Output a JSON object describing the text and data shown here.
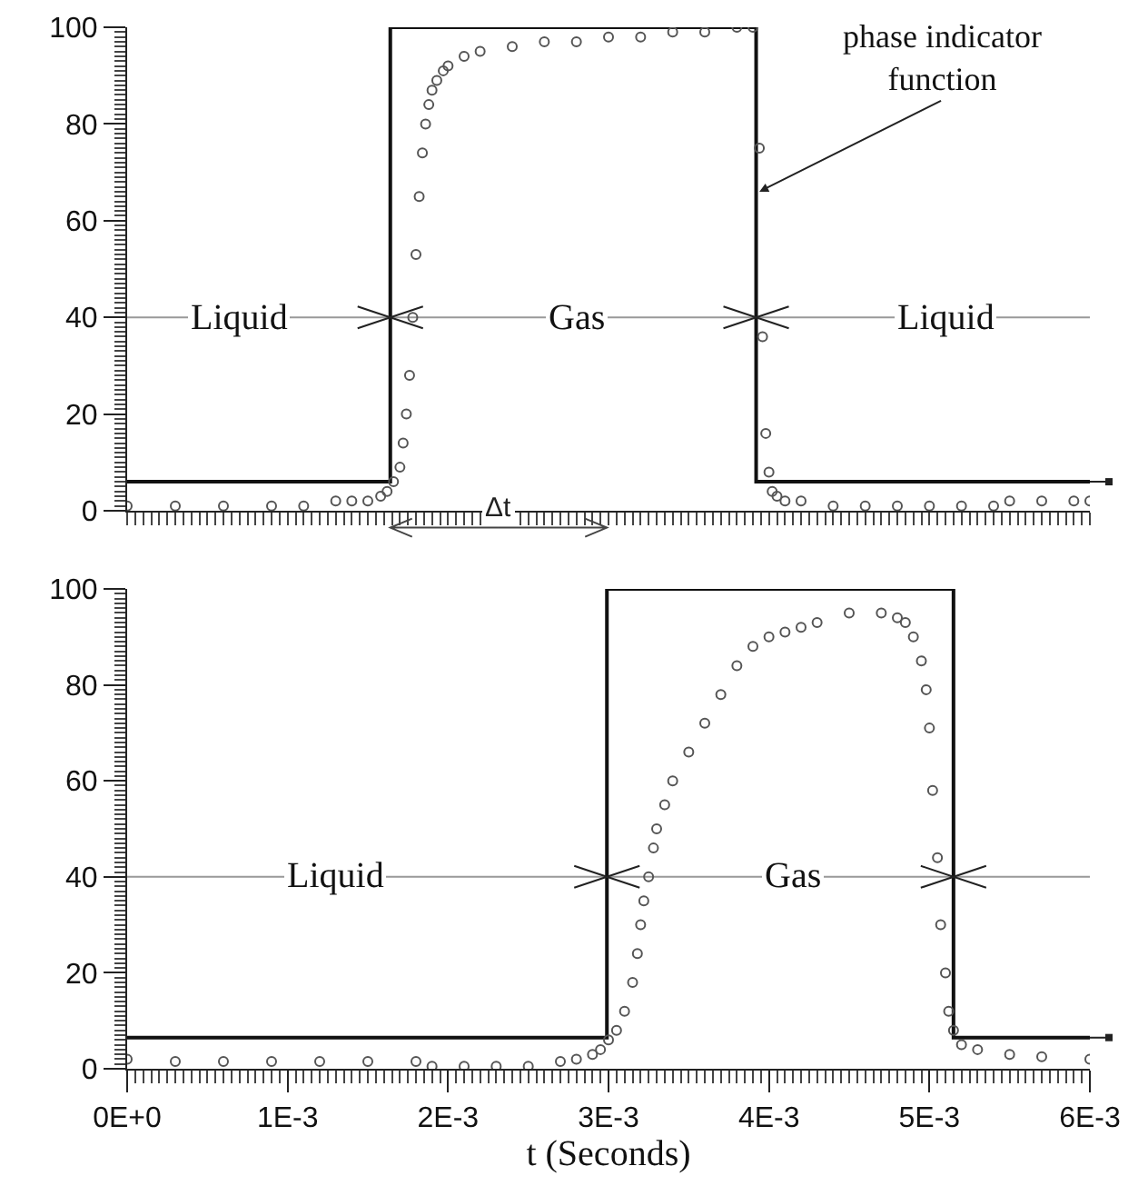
{
  "chart_data": [
    {
      "type": "scatter",
      "xlim": [
        0,
        0.006
      ],
      "ylim": [
        0,
        100
      ],
      "yticks": [
        0,
        20,
        40,
        60,
        80,
        100
      ],
      "xticks": [
        {
          "value": 0,
          "label": null
        },
        {
          "value": 0.001,
          "label": null
        },
        {
          "value": 0.002,
          "label": null
        },
        {
          "value": 0.003,
          "label": null
        },
        {
          "value": 0.004,
          "label": null
        },
        {
          "value": 0.005,
          "label": null
        },
        {
          "value": 0.006,
          "label": null
        }
      ],
      "tick_labels": "y",
      "grid": false,
      "legend": false,
      "ref_lines": [
        {
          "axis": "y",
          "value": 40,
          "color": "#999999"
        }
      ],
      "series": [
        {
          "type": "step",
          "color": "#111111",
          "x": [
            0,
            0.00164,
            0.00392,
            0.006
          ],
          "values": [
            6,
            100,
            6,
            6
          ]
        },
        {
          "color": "#555555",
          "marker": "circle",
          "x": [
            0,
            0.0003,
            0.0006,
            0.0009,
            0.0011,
            0.0013,
            0.0014,
            0.0015,
            0.00158,
            0.00162,
            0.00166,
            0.0017,
            0.00172,
            0.00174,
            0.00176,
            0.00178,
            0.0018,
            0.00182,
            0.00184,
            0.00186,
            0.00188,
            0.0019,
            0.00193,
            0.00197,
            0.002,
            0.0021,
            0.0022,
            0.0024,
            0.0026,
            0.0028,
            0.003,
            0.0032,
            0.0034,
            0.0036,
            0.0038,
            0.0039,
            0.00394,
            0.00396,
            0.00398,
            0.004,
            0.00402,
            0.00405,
            0.0041,
            0.0042,
            0.0044,
            0.0046,
            0.0048,
            0.005,
            0.0052,
            0.0054,
            0.0055,
            0.0057,
            0.0059,
            0.006
          ],
          "values": [
            1,
            1,
            1,
            1,
            1,
            2,
            2,
            2,
            3,
            4,
            6,
            9,
            14,
            20,
            28,
            40,
            53,
            65,
            74,
            80,
            84,
            87,
            89,
            91,
            92,
            94,
            95,
            96,
            97,
            97,
            98,
            98,
            99,
            99,
            100,
            100,
            75,
            36,
            16,
            8,
            4,
            3,
            2,
            2,
            1,
            1,
            1,
            1,
            1,
            1,
            2,
            2,
            2,
            2
          ]
        }
      ],
      "annotations": [
        {
          "text": "Liquid",
          "x": 0.0007,
          "y": 40
        },
        {
          "text": "Gas",
          "x": 0.0028,
          "y": 40
        },
        {
          "text": "Liquid",
          "x": 0.0051,
          "y": 40
        },
        {
          "text": "phase indicator function",
          "x": 0.00394,
          "y": 66
        },
        "Δt"
      ]
    },
    {
      "type": "scatter",
      "xlim": [
        0,
        0.006
      ],
      "ylim": [
        0,
        100
      ],
      "yticks": [
        0,
        20,
        40,
        60,
        80,
        100
      ],
      "xticks": [
        {
          "value": 0,
          "label": "0E+0"
        },
        {
          "value": 0.001,
          "label": "1E-3"
        },
        {
          "value": 0.002,
          "label": "2E-3"
        },
        {
          "value": 0.003,
          "label": "3E-3"
        },
        {
          "value": 0.004,
          "label": "4E-3"
        },
        {
          "value": 0.005,
          "label": "5E-3"
        },
        {
          "value": 0.006,
          "label": "6E-3"
        }
      ],
      "xlabel": "t (Seconds)",
      "grid": false,
      "legend": false,
      "ref_lines": [
        {
          "axis": "y",
          "value": 40,
          "color": "#999999"
        }
      ],
      "series": [
        {
          "type": "step",
          "color": "#111111",
          "x": [
            0,
            0.00299,
            0.00515,
            0.006
          ],
          "values": [
            6.5,
            100,
            6.5,
            6.5
          ]
        },
        {
          "color": "#555555",
          "marker": "circle",
          "x": [
            0,
            0.0003,
            0.0006,
            0.0009,
            0.0012,
            0.0015,
            0.0018,
            0.0019,
            0.0021,
            0.0023,
            0.0025,
            0.0027,
            0.0028,
            0.0029,
            0.00295,
            0.003,
            0.00305,
            0.0031,
            0.00315,
            0.00318,
            0.0032,
            0.00322,
            0.00325,
            0.00328,
            0.0033,
            0.00335,
            0.0034,
            0.0035,
            0.0036,
            0.0037,
            0.0038,
            0.0039,
            0.004,
            0.0041,
            0.0042,
            0.0043,
            0.0045,
            0.0047,
            0.0048,
            0.00485,
            0.0049,
            0.00495,
            0.00498,
            0.005,
            0.00502,
            0.00505,
            0.00507,
            0.0051,
            0.00512,
            0.00515,
            0.0052,
            0.0053,
            0.0055,
            0.0057,
            0.006
          ],
          "values": [
            2,
            1.5,
            1.5,
            1.5,
            1.5,
            1.5,
            1.5,
            0.5,
            0.5,
            0.5,
            0.5,
            1.5,
            2,
            3,
            4,
            6,
            8,
            12,
            18,
            24,
            30,
            35,
            40,
            46,
            50,
            55,
            60,
            66,
            72,
            78,
            84,
            88,
            90,
            91,
            92,
            93,
            95,
            95,
            94,
            93,
            90,
            85,
            79,
            71,
            58,
            44,
            30,
            20,
            12,
            8,
            5,
            4,
            3,
            2.5,
            2
          ]
        }
      ],
      "annotations": [
        {
          "text": "Liquid",
          "x": 0.0013,
          "y": 40
        },
        {
          "text": "Gas",
          "x": 0.00415,
          "y": 40
        }
      ]
    }
  ]
}
